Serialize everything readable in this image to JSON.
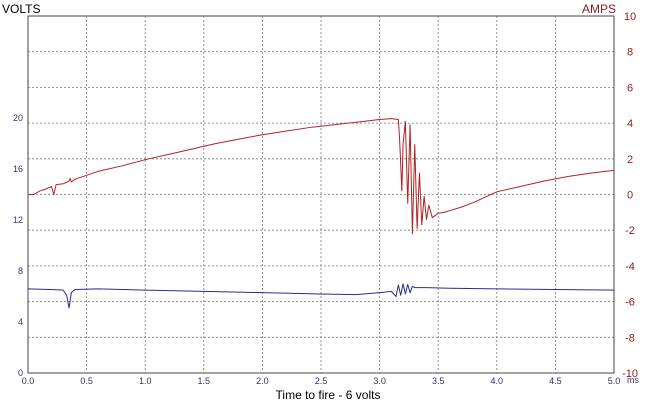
{
  "chart_data": {
    "type": "line",
    "title": "",
    "xlabel": "Time to fire - 6 volts",
    "x_unit": "ms",
    "ylabel_left": "VOLTS",
    "ylabel_right": "AMPS",
    "xlim": [
      0,
      5
    ],
    "ylim_left": [
      0,
      28
    ],
    "ylim_right": [
      -10,
      10
    ],
    "x_ticks": [
      "0.0",
      "0.5",
      "1.0",
      "1.5",
      "2.0",
      "2.5",
      "3.0",
      "3.5",
      "4.0",
      "4.5",
      "5.0"
    ],
    "y_left_ticks": [
      "0",
      "4",
      "8",
      "12",
      "16",
      "20"
    ],
    "y_right_ticks": [
      "10",
      "8",
      "6",
      "4",
      "2",
      "0",
      "-2",
      "-4",
      "-6",
      "-8",
      "-10"
    ],
    "grid": true,
    "colors": {
      "current": "#b22222",
      "voltage": "#2a2a9a",
      "left_axis": "#333366",
      "right_axis": "#8b1a1a"
    },
    "series": [
      {
        "axis": "right",
        "x": [
          0.0,
          0.05,
          0.1,
          0.15,
          0.2,
          0.22,
          0.24,
          0.3,
          0.35,
          0.36,
          0.37,
          0.4,
          0.6,
          0.8,
          1.0,
          1.2,
          1.4,
          1.6,
          1.8,
          2.0,
          2.2,
          2.4,
          2.6,
          2.8,
          3.0,
          3.1,
          3.16,
          3.17,
          3.19,
          3.2,
          3.22,
          3.24,
          3.26,
          3.28,
          3.3,
          3.32,
          3.34,
          3.36,
          3.38,
          3.4,
          3.42,
          3.45,
          3.5,
          3.55,
          3.6,
          3.7,
          3.8,
          3.9,
          4.0,
          4.2,
          4.4,
          4.6,
          4.8,
          5.0
        ],
        "y": [
          0.0,
          0.0,
          0.2,
          0.3,
          0.45,
          0.0,
          0.55,
          0.6,
          0.75,
          0.9,
          0.7,
          0.85,
          1.3,
          1.6,
          1.95,
          2.25,
          2.55,
          2.85,
          3.1,
          3.35,
          3.55,
          3.75,
          3.9,
          4.05,
          4.2,
          4.25,
          4.2,
          3.2,
          0.2,
          2.8,
          4.1,
          -0.5,
          3.9,
          -2.2,
          2.8,
          -1.9,
          1.2,
          -1.7,
          -0.1,
          -1.4,
          -0.6,
          -1.3,
          -1.05,
          -1.0,
          -0.9,
          -0.7,
          -0.45,
          -0.15,
          0.15,
          0.45,
          0.75,
          1.0,
          1.2,
          1.35
        ]
      },
      {
        "axis": "left",
        "x": [
          0.0,
          0.2,
          0.3,
          0.33,
          0.35,
          0.37,
          0.4,
          0.6,
          1.0,
          1.5,
          2.0,
          2.5,
          2.8,
          3.0,
          3.1,
          3.14,
          3.16,
          3.18,
          3.2,
          3.22,
          3.24,
          3.26,
          3.28,
          3.3,
          3.4,
          3.6,
          4.0,
          4.5,
          5.0
        ],
        "y": [
          6.6,
          6.55,
          6.5,
          6.1,
          5.1,
          6.3,
          6.55,
          6.6,
          6.5,
          6.4,
          6.3,
          6.2,
          6.15,
          6.3,
          6.4,
          6.0,
          6.9,
          6.1,
          7.0,
          6.2,
          6.95,
          6.3,
          6.8,
          6.7,
          6.7,
          6.65,
          6.6,
          6.55,
          6.5
        ]
      }
    ]
  }
}
